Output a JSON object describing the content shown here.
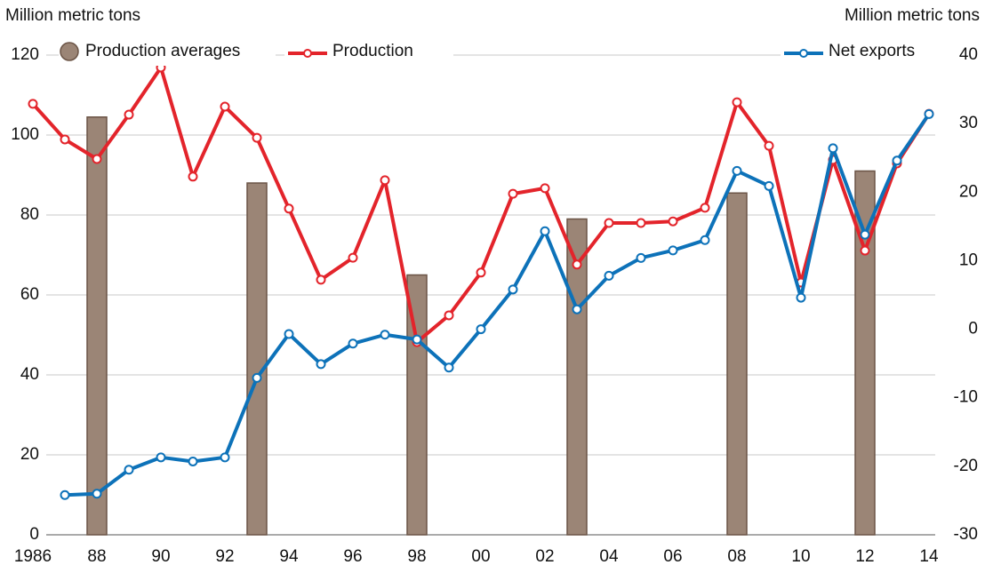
{
  "chart_data": {
    "type": "combo",
    "y_label": "Million metric tons",
    "y2_label": "Million metric tons",
    "x": [
      1986,
      1987,
      1988,
      1989,
      1990,
      1991,
      1992,
      1993,
      1994,
      1995,
      1996,
      1997,
      1998,
      1999,
      2000,
      2001,
      2002,
      2003,
      2004,
      2005,
      2006,
      2007,
      2008,
      2009,
      2010,
      2011,
      2012,
      2013,
      2014
    ],
    "xlim": [
      1986,
      2014
    ],
    "xticks": [
      1986,
      {
        "value": 1988,
        "label": "88"
      },
      {
        "value": 1990,
        "label": "90"
      },
      {
        "value": 1992,
        "label": "92"
      },
      {
        "value": 1994,
        "label": "94"
      },
      {
        "value": 1996,
        "label": "96"
      },
      {
        "value": 1998,
        "label": "98"
      },
      {
        "value": 2000,
        "label": "00"
      },
      {
        "value": 2002,
        "label": "02"
      },
      {
        "value": 2004,
        "label": "04"
      },
      {
        "value": 2006,
        "label": "06"
      },
      {
        "value": 2008,
        "label": "08"
      },
      {
        "value": 2010,
        "label": "10"
      },
      {
        "value": 2012,
        "label": "12"
      },
      {
        "value": 2014,
        "label": "14"
      }
    ],
    "ylim": [
      0,
      120
    ],
    "yticks": [
      0,
      20,
      40,
      60,
      80,
      100,
      120
    ],
    "y2lim": [
      -30,
      40
    ],
    "y2ticks": [
      -30,
      -20,
      -10,
      0,
      10,
      20,
      30,
      40
    ],
    "grid": true,
    "series": [
      {
        "name": "Production averages",
        "type": "bar",
        "color": "#9b8576",
        "values": [
          null,
          null,
          104.5,
          null,
          null,
          null,
          null,
          88,
          null,
          null,
          null,
          null,
          65,
          null,
          null,
          null,
          null,
          79,
          null,
          null,
          null,
          null,
          85.5,
          null,
          null,
          null,
          91,
          null,
          null
        ]
      },
      {
        "name": "Production",
        "type": "line",
        "color": "#e3242b",
        "values": [
          107.8,
          98.9,
          94,
          105.1,
          116.9,
          89.6,
          107.1,
          99.3,
          81.6,
          63.8,
          69.3,
          88.7,
          48.2,
          54.9,
          65.6,
          85.3,
          86.7,
          67.6,
          78,
          78,
          78.4,
          81.8,
          108.2,
          97.3,
          63.1,
          93.8,
          71.1,
          92.9,
          105.3
        ]
      },
      {
        "name": "Net exports",
        "type": "line",
        "axis": "y2",
        "color": "#0d72b9",
        "values": [
          null,
          -24.2,
          -24,
          -20.5,
          -18.7,
          -19.3,
          -18.7,
          -7.1,
          -0.7,
          -5.1,
          -2.1,
          -0.8,
          -1.5,
          -5.6,
          0,
          5.8,
          14.3,
          2.9,
          7.8,
          10.4,
          11.5,
          13,
          23.1,
          20.9,
          4.6,
          26.4,
          13.8,
          24.6,
          31.4
        ]
      }
    ]
  }
}
